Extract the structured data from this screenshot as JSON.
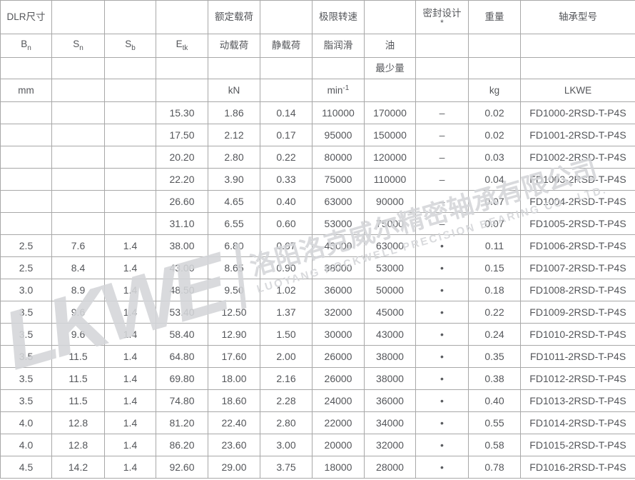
{
  "table": {
    "header": {
      "dlr": "DLR尺寸",
      "rated_load": "额定载荷",
      "limit_speed": "极限转速",
      "seal_design": "密封设计",
      "seal_asterisk": "*",
      "weight": "重量",
      "model": "轴承型号",
      "bn_main": "B",
      "bn_sub": "n",
      "sn_main": "S",
      "sn_sub": "n",
      "sb_main": "S",
      "sb_sub": "b",
      "etk_main": "E",
      "etk_sub": "tk",
      "dynamic_load": "动载荷",
      "static_load": "静载荷",
      "grease": "脂润滑",
      "oil": "油",
      "min_qty": "最少量",
      "unit_mm": "mm",
      "unit_kn": "kN",
      "unit_speed_main": "min",
      "unit_speed_sup": "-1",
      "unit_kg": "kg",
      "brand": "LKWE"
    },
    "rows": [
      [
        "",
        "",
        "",
        "15.30",
        "1.86",
        "0.14",
        "110000",
        "170000",
        "–",
        "0.02",
        "FD1000-2RSD-T-P4S"
      ],
      [
        "",
        "",
        "",
        "17.50",
        "2.12",
        "0.17",
        "95000",
        "150000",
        "–",
        "0.02",
        "FD1001-2RSD-T-P4S"
      ],
      [
        "",
        "",
        "",
        "20.20",
        "2.80",
        "0.22",
        "80000",
        "120000",
        "–",
        "0.03",
        "FD1002-2RSD-T-P4S"
      ],
      [
        "",
        "",
        "",
        "22.20",
        "3.90",
        "0.33",
        "75000",
        "110000",
        "–",
        "0.04",
        "FD1003-2RSD-T-P4S"
      ],
      [
        "",
        "",
        "",
        "26.60",
        "4.65",
        "0.40",
        "63000",
        "90000",
        "–",
        "0.07",
        "FD1004-2RSD-T-P4S"
      ],
      [
        "",
        "",
        "",
        "31.10",
        "6.55",
        "0.60",
        "53000",
        "75000",
        "–",
        "0.07",
        "FD1005-2RSD-T-P4S"
      ],
      [
        "2.5",
        "7.6",
        "1.4",
        "38.00",
        "6.80",
        "0.67",
        "43000",
        "63000",
        "•",
        "0.11",
        "FD1006-2RSD-T-P4S"
      ],
      [
        "2.5",
        "8.4",
        "1.4",
        "43.00",
        "8.65",
        "0.90",
        "38000",
        "53000",
        "•",
        "0.15",
        "FD1007-2RSD-T-P4S"
      ],
      [
        "3.0",
        "8.9",
        "1.4",
        "48.50",
        "9.50",
        "1.02",
        "36000",
        "50000",
        "•",
        "0.18",
        "FD1008-2RSD-T-P4S"
      ],
      [
        "3.5",
        "9.6",
        "1.4",
        "53.40",
        "12.50",
        "1.37",
        "32000",
        "45000",
        "•",
        "0.22",
        "FD1009-2RSD-T-P4S"
      ],
      [
        "3.5",
        "9.6",
        "1.4",
        "58.40",
        "12.90",
        "1.50",
        "30000",
        "43000",
        "•",
        "0.24",
        "FD1010-2RSD-T-P4S"
      ],
      [
        "3.5",
        "11.5",
        "1.4",
        "64.80",
        "17.60",
        "2.00",
        "26000",
        "38000",
        "•",
        "0.35",
        "FD1011-2RSD-T-P4S"
      ],
      [
        "3.5",
        "11.5",
        "1.4",
        "69.80",
        "18.00",
        "2.16",
        "26000",
        "38000",
        "•",
        "0.38",
        "FD1012-2RSD-T-P4S"
      ],
      [
        "3.5",
        "11.5",
        "1.4",
        "74.80",
        "18.60",
        "2.28",
        "24000",
        "36000",
        "•",
        "0.40",
        "FD1013-2RSD-T-P4S"
      ],
      [
        "4.0",
        "12.8",
        "1.4",
        "81.20",
        "22.40",
        "2.80",
        "22000",
        "34000",
        "•",
        "0.55",
        "FD1014-2RSD-T-P4S"
      ],
      [
        "4.0",
        "12.8",
        "1.4",
        "86.20",
        "23.60",
        "3.00",
        "20000",
        "32000",
        "•",
        "0.58",
        "FD1015-2RSD-T-P4S"
      ],
      [
        "4.5",
        "14.2",
        "1.4",
        "92.60",
        "29.00",
        "3.75",
        "18000",
        "28000",
        "•",
        "0.78",
        "FD1016-2RSD-T-P4S"
      ]
    ]
  },
  "watermark": {
    "logo": "LKWE",
    "company_cn": "洛阳洛克威尔精密轴承有限公司",
    "company_en": "LUOYANG ROCKWELL PRECISION BEARING CO., LTD."
  },
  "colors": {
    "border": "#a8a8a8",
    "text": "#54565a",
    "watermark": "#d4d6d9",
    "background": "#ffffff"
  }
}
